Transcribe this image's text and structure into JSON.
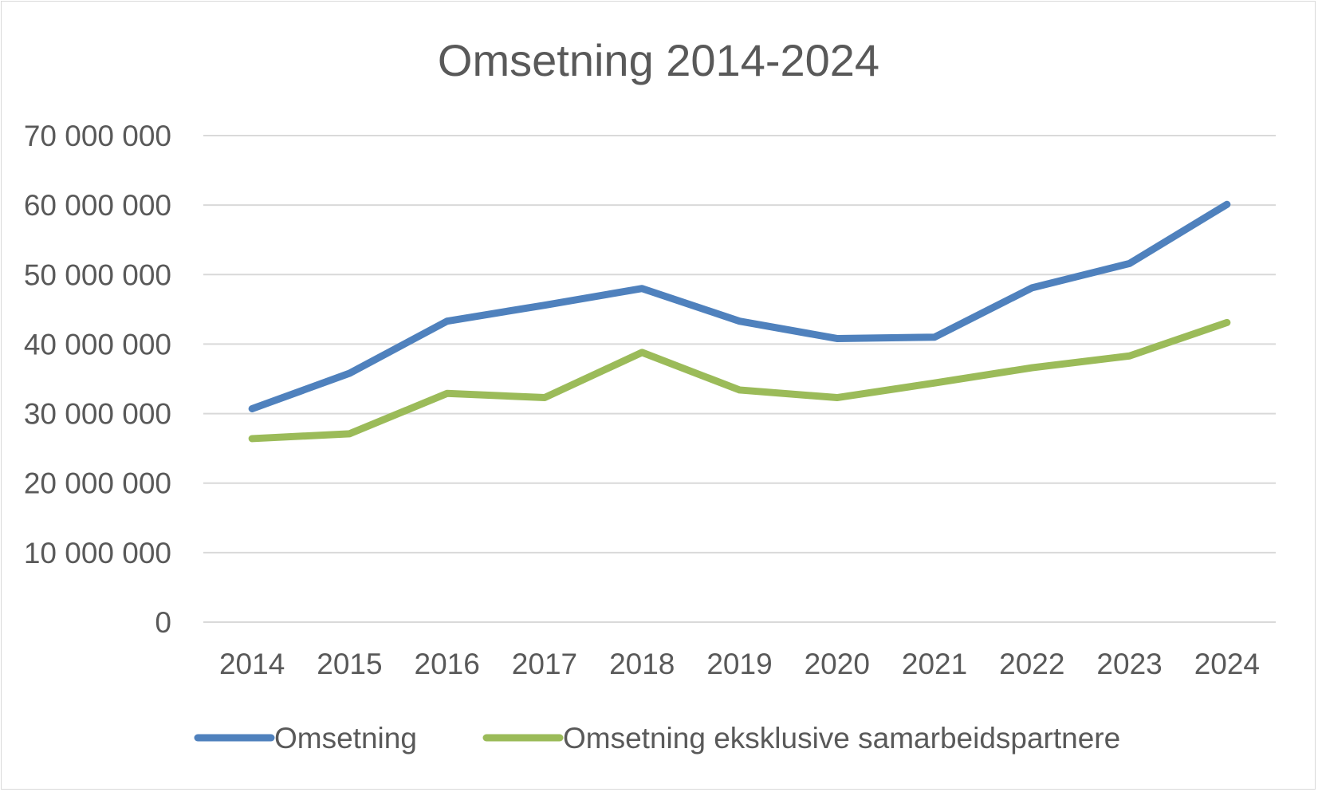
{
  "chart_data": {
    "type": "line",
    "title": "Omsetning 2014-2024",
    "xlabel": "",
    "ylabel": "",
    "categories": [
      "2014",
      "2015",
      "2016",
      "2017",
      "2018",
      "2019",
      "2020",
      "2021",
      "2022",
      "2023",
      "2024"
    ],
    "ylim": [
      0,
      70000000
    ],
    "yticks": [
      0,
      10000000,
      20000000,
      30000000,
      40000000,
      50000000,
      60000000,
      70000000
    ],
    "ytick_labels": [
      "0",
      "10 000 000",
      "20 000 000",
      "30 000 000",
      "40 000 000",
      "50 000 000",
      "60 000 000",
      "70 000 000"
    ],
    "grid": true,
    "legend_position": "bottom",
    "series": [
      {
        "name": "Omsetning",
        "color": "#4f81bd",
        "values": [
          30700000,
          35800000,
          43300000,
          45600000,
          48000000,
          43300000,
          40800000,
          41000000,
          48100000,
          51600000,
          60100000
        ]
      },
      {
        "name": "Omsetning eksklusive samarbeidspartnere",
        "color": "#9bbb59",
        "values": [
          26400000,
          27100000,
          32900000,
          32300000,
          38800000,
          33400000,
          32300000,
          34400000,
          36600000,
          38300000,
          43100000
        ]
      }
    ]
  }
}
